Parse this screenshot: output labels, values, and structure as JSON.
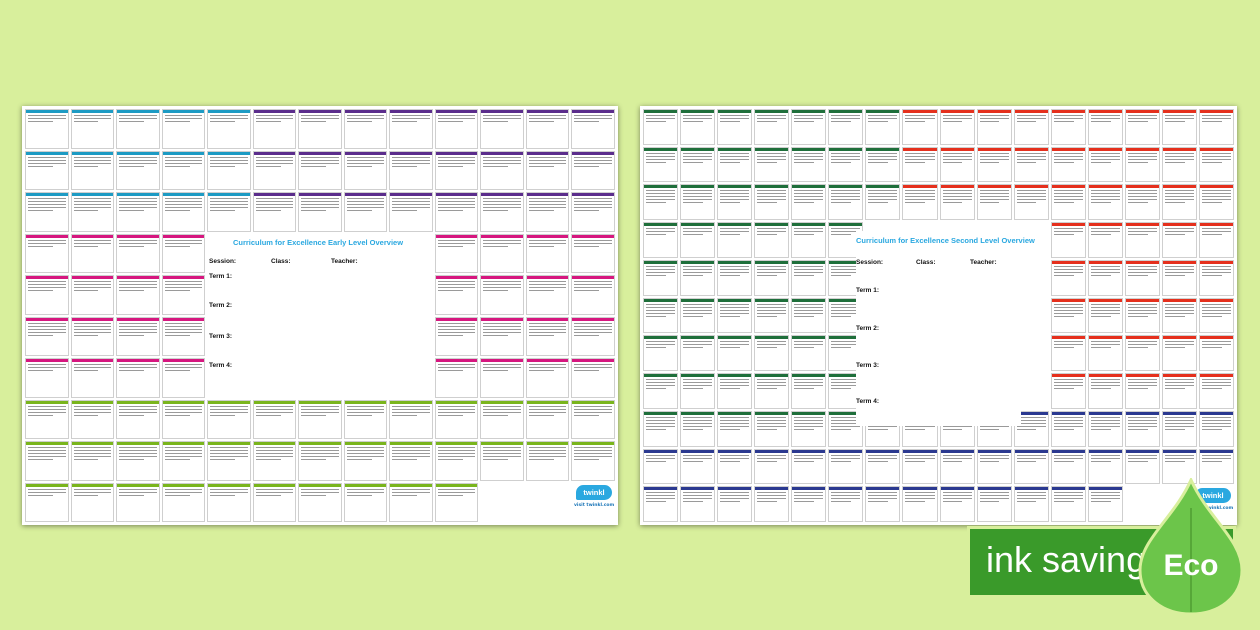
{
  "colors": {
    "background": "#d8ef9c",
    "eco_badge": "#3a9a2a",
    "eco_leaf": "#6cc54a",
    "title_blue": "#2aa8e0",
    "category": [
      "#1d9bc4",
      "#5b2d8c",
      "#d6177f",
      "#e5301d",
      "#7ab51d",
      "#1f6f3b",
      "#2b3990"
    ]
  },
  "early_overview": {
    "title": "Curriculum for Excellence Early Level Overview",
    "session_label": "Session:",
    "class_label": "Class:",
    "teacher_label": "Teacher:",
    "terms": [
      "Term 1:",
      "Term 2:",
      "Term 3:",
      "Term 4:"
    ]
  },
  "second_overview": {
    "title": "Curriculum for Excellence Second Level Overview",
    "session_label": "Session:",
    "class_label": "Class:",
    "teacher_label": "Teacher:",
    "terms": [
      "Term 1:",
      "Term 2:",
      "Term 3:",
      "Term 4:"
    ]
  },
  "brand": {
    "logo_text": "twinkl",
    "url": "visit twinkl.com"
  },
  "eco_badge": {
    "text": "ink saving",
    "leaf_text": "Eco",
    "icon": "leaf-icon"
  }
}
